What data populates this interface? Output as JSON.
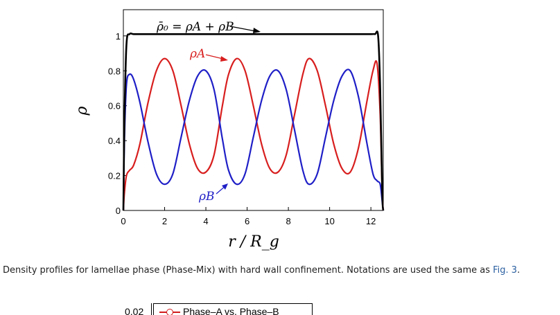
{
  "chart_data": {
    "type": "line",
    "title": "",
    "xlabel": "r / R_g",
    "ylabel": "ρ",
    "xlim": [
      0,
      12.6
    ],
    "ylim": [
      0,
      1.15
    ],
    "xticks": [
      "0",
      "2",
      "4",
      "6",
      "8",
      "10",
      "12"
    ],
    "yticks": [
      "0",
      "0.2",
      "0.4",
      "0.6",
      "0.8",
      "1"
    ],
    "grid": false,
    "annotations": {
      "total": "ρ̄₀ = ρA + ρB",
      "a": "ρA",
      "b": "ρB"
    },
    "series": [
      {
        "name": "ρ̄₀ = ρA + ρB",
        "color": "#000000",
        "x": [
          0,
          0.05,
          0.15,
          0.3,
          0.5,
          1,
          2,
          3,
          4,
          5,
          6,
          7,
          8,
          9,
          10,
          11,
          12,
          12.2,
          12.35,
          12.45,
          12.55,
          12.6
        ],
        "y": [
          0,
          0.5,
          0.95,
          1.01,
          1.01,
          1.01,
          1.01,
          1.01,
          1.01,
          1.01,
          1.01,
          1.01,
          1.01,
          1.01,
          1.01,
          1.01,
          1.01,
          1.01,
          1.0,
          0.7,
          0.1,
          0
        ]
      },
      {
        "name": "ρA",
        "color": "#d81e1e",
        "x": [
          0,
          0.05,
          0.15,
          0.3,
          0.5,
          0.8,
          1.2,
          1.6,
          2.0,
          2.4,
          2.8,
          3.2,
          3.6,
          4.0,
          4.4,
          4.8,
          5.1,
          5.5,
          5.9,
          6.3,
          6.7,
          7.1,
          7.5,
          7.9,
          8.3,
          8.7,
          9.0,
          9.4,
          9.8,
          10.2,
          10.6,
          11.0,
          11.4,
          11.8,
          12.1,
          12.3,
          12.45,
          12.55,
          12.6
        ],
        "y": [
          0,
          0.1,
          0.2,
          0.23,
          0.26,
          0.38,
          0.62,
          0.8,
          0.87,
          0.8,
          0.6,
          0.38,
          0.24,
          0.22,
          0.32,
          0.6,
          0.78,
          0.87,
          0.8,
          0.6,
          0.38,
          0.24,
          0.22,
          0.32,
          0.55,
          0.78,
          0.87,
          0.8,
          0.6,
          0.38,
          0.24,
          0.22,
          0.36,
          0.62,
          0.8,
          0.84,
          0.55,
          0.1,
          0
        ]
      },
      {
        "name": "ρB",
        "color": "#1f1fc7",
        "x": [
          0,
          0.05,
          0.15,
          0.3,
          0.5,
          0.8,
          1.2,
          1.6,
          2.0,
          2.4,
          2.8,
          3.2,
          3.6,
          4.0,
          4.4,
          4.8,
          5.1,
          5.5,
          5.9,
          6.3,
          6.7,
          7.1,
          7.5,
          7.9,
          8.3,
          8.7,
          9.0,
          9.4,
          9.8,
          10.2,
          10.6,
          11.0,
          11.4,
          11.8,
          12.1,
          12.3,
          12.45,
          12.55,
          12.6
        ],
        "y": [
          0,
          0.4,
          0.72,
          0.78,
          0.75,
          0.62,
          0.39,
          0.21,
          0.15,
          0.21,
          0.42,
          0.63,
          0.77,
          0.8,
          0.69,
          0.41,
          0.23,
          0.15,
          0.21,
          0.42,
          0.63,
          0.77,
          0.8,
          0.69,
          0.46,
          0.23,
          0.15,
          0.21,
          0.42,
          0.63,
          0.77,
          0.8,
          0.65,
          0.39,
          0.21,
          0.17,
          0.15,
          0.05,
          0
        ]
      }
    ]
  },
  "caption": {
    "text": "Density profiles for lamellae phase (Phase-Mix) with hard wall confinement. Notations are used the same as",
    "ref": "Fig. 3",
    "end": "."
  },
  "next_figure": {
    "ytick": "0.02",
    "legend": "Phase–A vs. Phase–B",
    "legend_color": "#d11b1b"
  }
}
